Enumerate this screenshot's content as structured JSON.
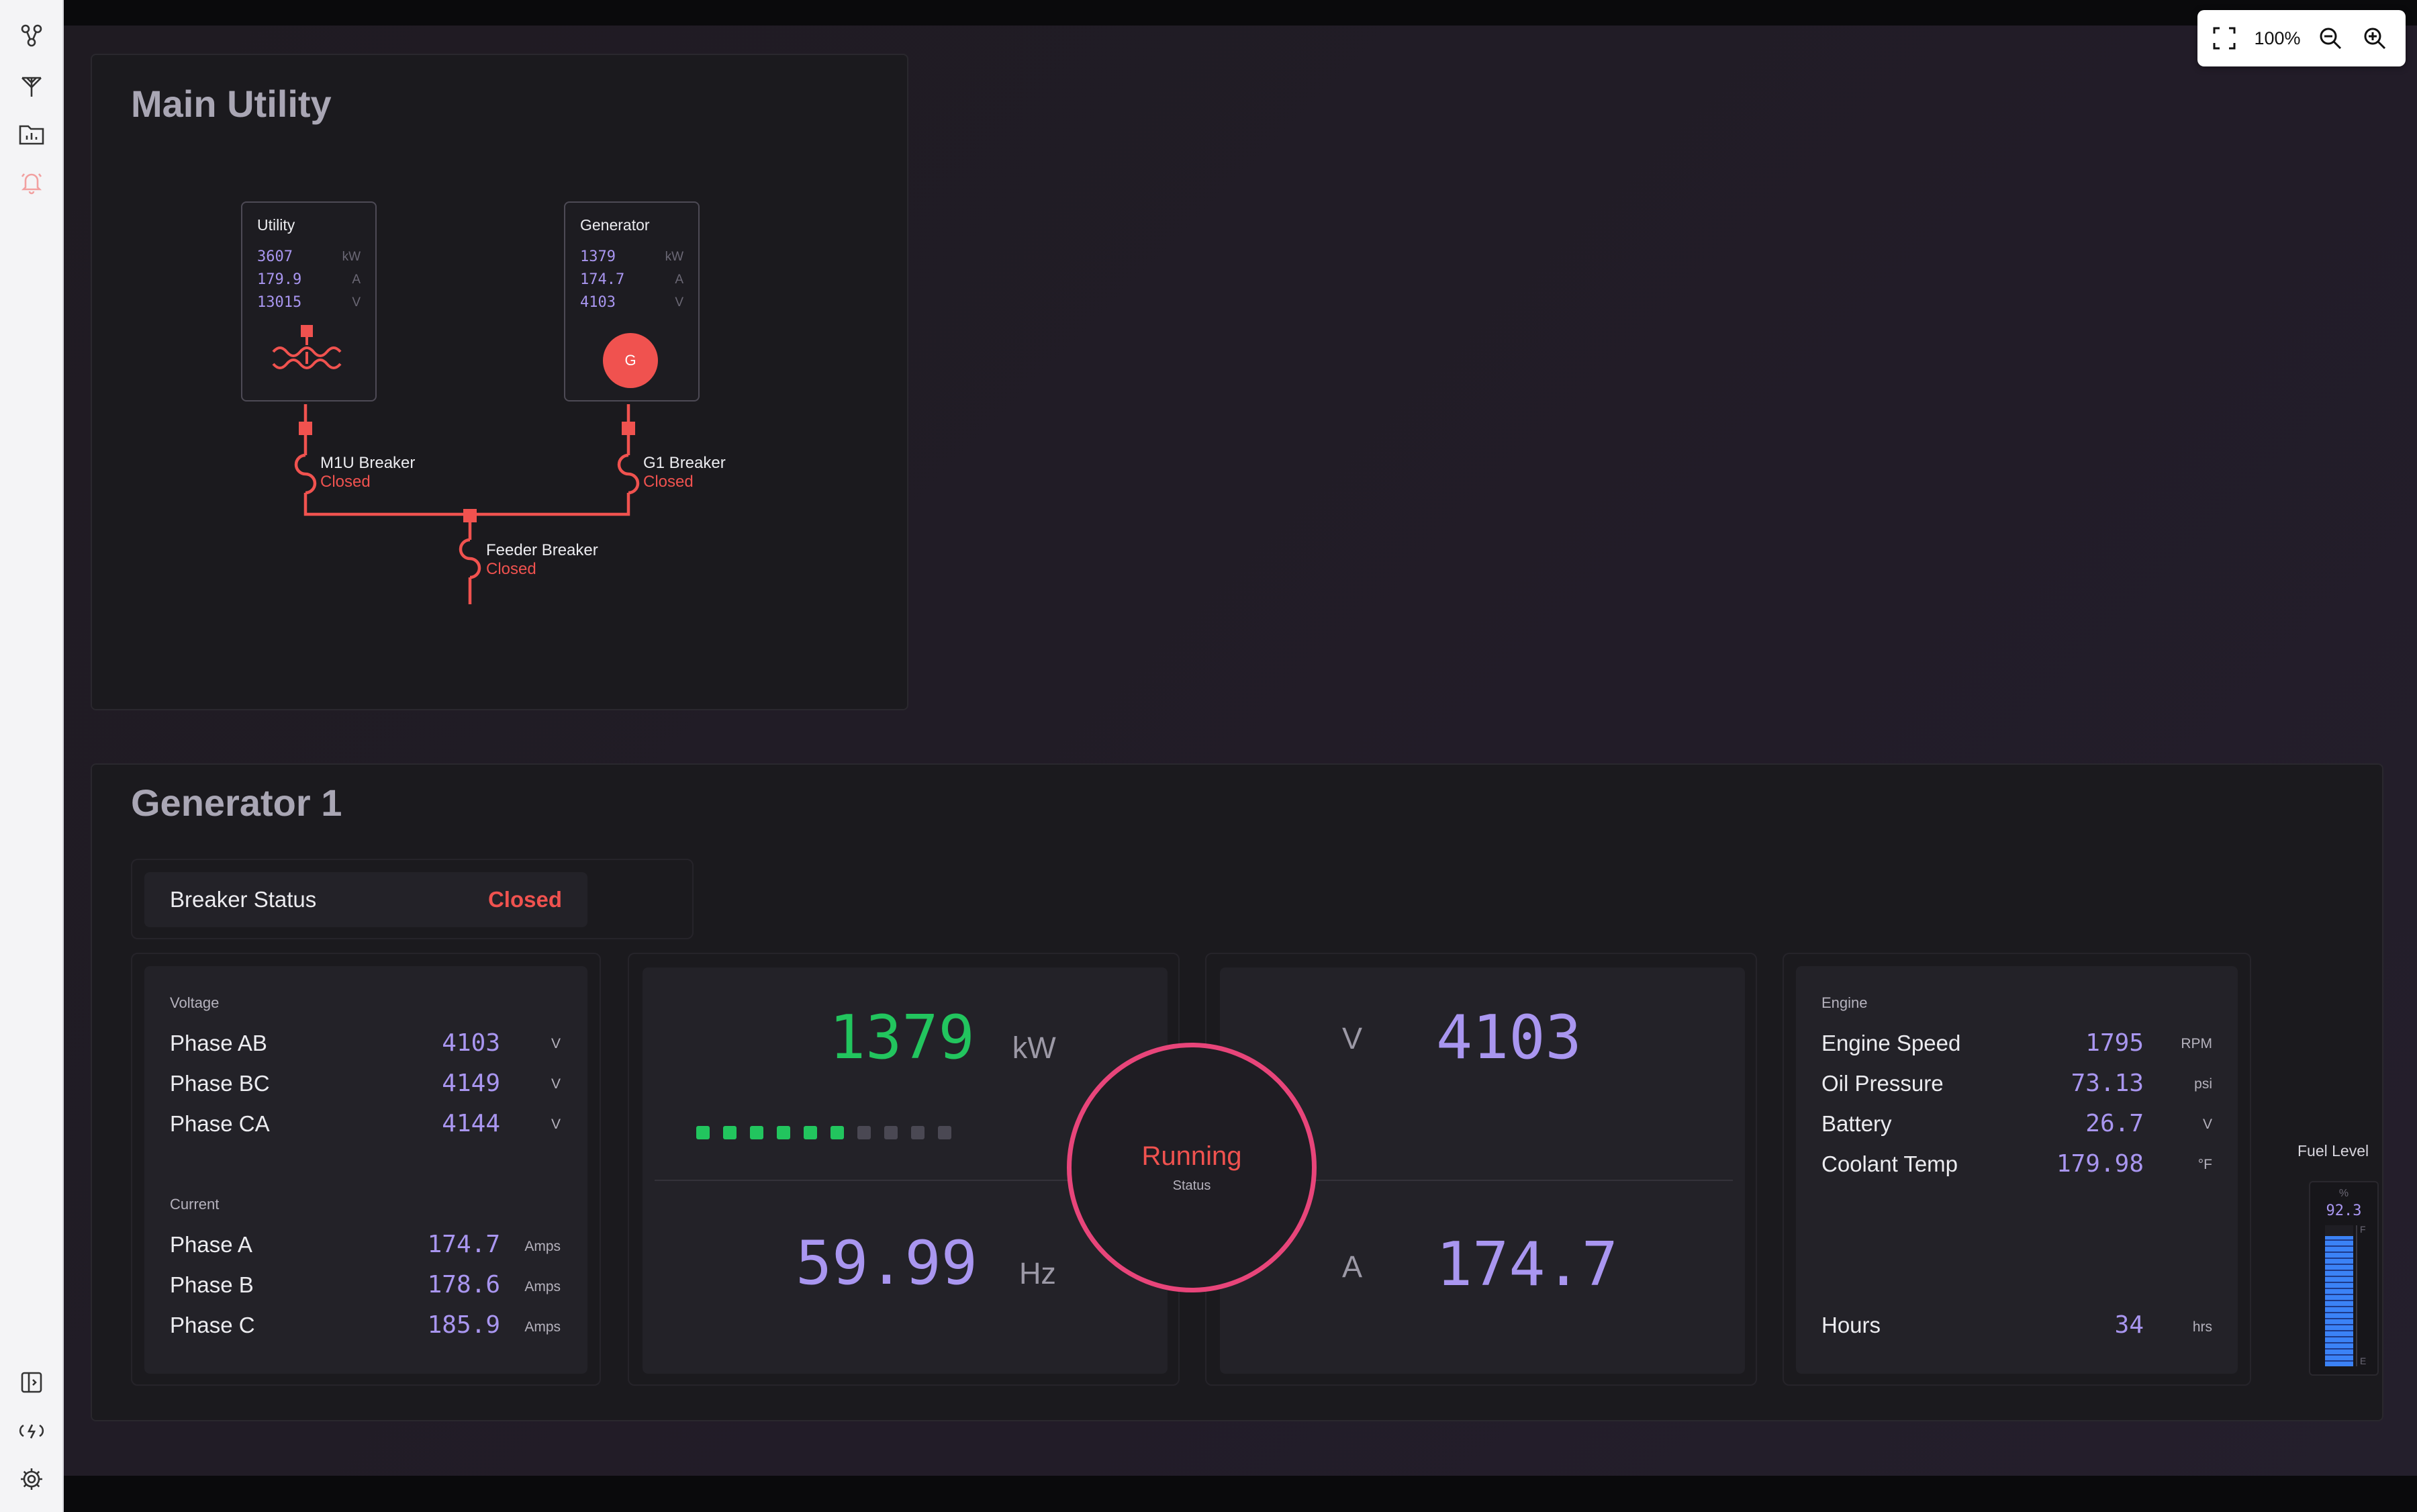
{
  "sidebar": {
    "top_icons": [
      "topology-icon",
      "antenna-icon",
      "folder-chart-icon",
      "bell-icon"
    ],
    "bottom_icons": [
      "panel-toggle-icon",
      "power-icon",
      "gear-icon"
    ]
  },
  "zoom": {
    "level": "100%"
  },
  "main_utility": {
    "title": "Main Utility",
    "utility": {
      "label": "Utility",
      "rows": [
        {
          "value": "3607",
          "unit": "kW"
        },
        {
          "value": "179.9",
          "unit": "A"
        },
        {
          "value": "13015",
          "unit": "V"
        }
      ]
    },
    "generator": {
      "label": "Generator",
      "symbol": "G",
      "rows": [
        {
          "value": "1379",
          "unit": "kW"
        },
        {
          "value": "174.7",
          "unit": "A"
        },
        {
          "value": "4103",
          "unit": "V"
        }
      ]
    },
    "breakers": [
      {
        "name": "M1U Breaker",
        "state": "Closed"
      },
      {
        "name": "G1 Breaker",
        "state": "Closed"
      },
      {
        "name": "Feeder Breaker",
        "state": "Closed"
      }
    ]
  },
  "generator1": {
    "title": "Generator 1",
    "breaker_status": {
      "label": "Breaker Status",
      "value": "Closed"
    },
    "voltage": {
      "label": "Voltage",
      "rows": [
        {
          "label": "Phase AB",
          "value": "4103",
          "unit": "V"
        },
        {
          "label": "Phase BC",
          "value": "4149",
          "unit": "V"
        },
        {
          "label": "Phase CA",
          "value": "4144",
          "unit": "V"
        }
      ]
    },
    "current": {
      "label": "Current",
      "rows": [
        {
          "label": "Phase A",
          "value": "174.7",
          "unit": "Amps"
        },
        {
          "label": "Phase B",
          "value": "178.6",
          "unit": "Amps"
        },
        {
          "label": "Phase C",
          "value": "185.9",
          "unit": "Amps"
        }
      ]
    },
    "power": {
      "value": "1379",
      "unit": "kW",
      "bar_lit": 6,
      "bar_total": 10
    },
    "frequency": {
      "value": "59.99",
      "unit": "Hz"
    },
    "status": {
      "value": "Running",
      "label": "Status"
    },
    "volts": {
      "unit": "V",
      "value": "4103"
    },
    "amps": {
      "unit": "A",
      "value": "174.7"
    },
    "engine": {
      "label": "Engine",
      "rows": [
        {
          "label": "Engine Speed",
          "value": "1795",
          "unit": "RPM"
        },
        {
          "label": "Oil Pressure",
          "value": "73.13",
          "unit": "psi"
        },
        {
          "label": "Battery",
          "value": "26.7",
          "unit": "V"
        },
        {
          "label": "Coolant Temp",
          "value": "179.98",
          "unit": "°F"
        }
      ],
      "hours": {
        "label": "Hours",
        "value": "34",
        "unit": "hrs"
      }
    },
    "fuel": {
      "label": "Fuel Level",
      "unit": "%",
      "value": "92.3",
      "level": 0.923,
      "full_mark": "F",
      "empty_mark": "E"
    }
  },
  "colors": {
    "accent_red": "#f0524f",
    "value_purple": "#a996f0",
    "power_green": "#22c55e",
    "status_ring": "#e8457a",
    "fuel_blue": "#3b82f6"
  }
}
